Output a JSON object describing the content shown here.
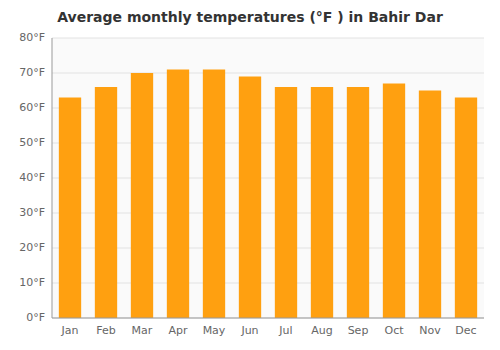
{
  "chart_data": {
    "type": "bar",
    "title": "Average monthly temperatures (°F ) in Bahir Dar",
    "categories": [
      "Jan",
      "Feb",
      "Mar",
      "Apr",
      "May",
      "Jun",
      "Jul",
      "Aug",
      "Sep",
      "Oct",
      "Nov",
      "Dec"
    ],
    "values": [
      63,
      66,
      70,
      71,
      71,
      69,
      66,
      66,
      66,
      67,
      65,
      63
    ],
    "color": "#FFA010",
    "ylim": [
      0,
      80
    ],
    "yticks": [
      {
        "value": 0,
        "label": "0°F"
      },
      {
        "value": 10,
        "label": "10°F"
      },
      {
        "value": 20,
        "label": "20°F"
      },
      {
        "value": 30,
        "label": "30°F"
      },
      {
        "value": 40,
        "label": "40°F"
      },
      {
        "value": 50,
        "label": "50°F"
      },
      {
        "value": 60,
        "label": "60°F"
      },
      {
        "value": 70,
        "label": "70°F"
      },
      {
        "value": 80,
        "label": "80°F"
      }
    ],
    "grid": true
  }
}
